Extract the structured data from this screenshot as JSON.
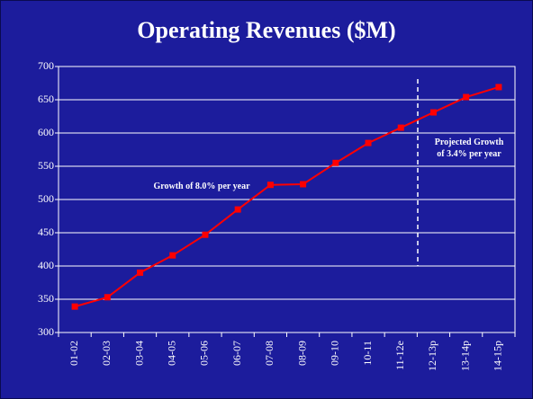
{
  "chart_data": {
    "type": "line",
    "title": "Operating Revenues ($M)",
    "categories": [
      "01-02",
      "02-03",
      "03-04",
      "04-05",
      "05-06",
      "06-07",
      "07-08",
      "08-09",
      "09-10",
      "10-11",
      "11-12e",
      "12-13p",
      "13-14p",
      "14-15p"
    ],
    "series": [
      {
        "name": "Operating Revenues",
        "color": "#ff0000",
        "values": [
          339,
          353,
          390,
          416,
          447,
          485,
          522,
          523,
          555,
          585,
          608,
          631,
          654,
          669
        ]
      }
    ],
    "ylim": [
      300,
      700
    ],
    "yticks": [
      300,
      350,
      400,
      450,
      500,
      550,
      600,
      650,
      700
    ],
    "grid": true,
    "annotations": [
      {
        "text": "Growth of 8.0% per year"
      },
      {
        "lines": [
          "Projected Growth",
          "of 3.4% per year"
        ]
      }
    ]
  }
}
